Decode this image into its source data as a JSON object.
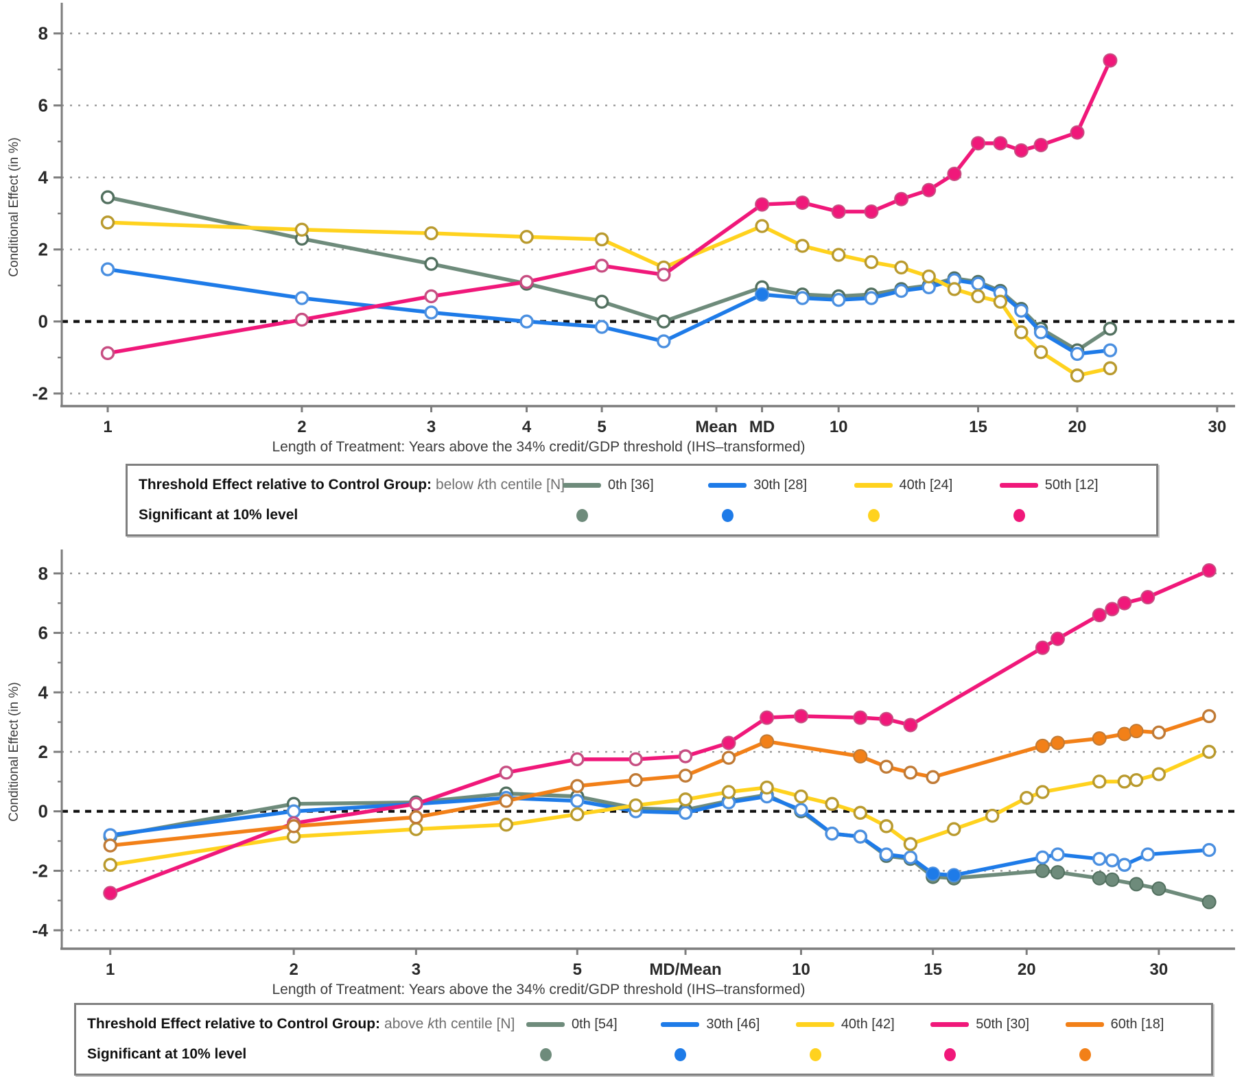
{
  "figure": {
    "background": "#ffffff"
  },
  "chart_data": [
    {
      "type": "line",
      "title": "",
      "xlabel": "Length of Treatment: Years above the 34% credit/GDP threshold (IHS–transformed)",
      "ylabel": "Conditional Effect (in %)",
      "x_scale": "asinh",
      "xlim": [
        0.82,
        31.6
      ],
      "ylim": [
        -2.35,
        8.7
      ],
      "grid": "dotted horizontal, zero line black dashed",
      "legend_position": "below chart in bordered box",
      "x_ticks": [
        {
          "v": 1,
          "label": "1"
        },
        {
          "v": 2,
          "label": "2"
        },
        {
          "v": 3,
          "label": "3"
        },
        {
          "v": 4,
          "label": "4"
        },
        {
          "v": 5,
          "label": "5"
        },
        {
          "v": 7,
          "label": "Mean",
          "bold": true
        },
        {
          "v": 8,
          "label": "MD",
          "bold": true
        },
        {
          "v": 10,
          "label": "10"
        },
        {
          "v": 15,
          "label": "15"
        },
        {
          "v": 20,
          "label": "20"
        },
        {
          "v": 30,
          "label": "30"
        }
      ],
      "y_ticks_major": [
        8,
        6,
        4,
        2,
        0,
        -2
      ],
      "y_ticks_minor": [
        7,
        5,
        3,
        1,
        -1
      ],
      "zero_line": 0,
      "x": [
        1,
        2,
        3,
        4,
        5,
        6,
        8,
        9,
        10,
        11,
        12,
        13,
        14,
        15,
        16,
        17,
        18,
        20,
        22
      ],
      "series": [
        {
          "name": "0th [36]",
          "color": "#6E8B7B",
          "ring": "#52705F",
          "y": [
            3.45,
            2.3,
            1.6,
            1.05,
            0.55,
            0.0,
            0.95,
            0.75,
            0.7,
            0.75,
            0.9,
            1.0,
            1.2,
            1.1,
            0.85,
            0.35,
            -0.2,
            -0.8,
            -0.2
          ],
          "filled": [
            0,
            0,
            0,
            0,
            0,
            0,
            0,
            0,
            0,
            0,
            0,
            0,
            0,
            0,
            0,
            0,
            0,
            0,
            0
          ]
        },
        {
          "name": "30th [28]",
          "color": "#1E7BE8",
          "ring": "#4A8FE0",
          "y": [
            1.45,
            0.65,
            0.25,
            0.0,
            -0.15,
            -0.55,
            0.75,
            0.65,
            0.6,
            0.65,
            0.85,
            0.95,
            1.15,
            1.05,
            0.8,
            0.3,
            -0.3,
            -0.9,
            -0.8
          ],
          "filled": [
            0,
            0,
            0,
            0,
            0,
            0,
            1,
            0,
            0,
            0,
            0,
            0,
            0,
            0,
            0,
            0,
            0,
            0,
            0
          ]
        },
        {
          "name": "40th [24]",
          "color": "#FFD21E",
          "ring": "#B99A2E",
          "y": [
            2.75,
            2.55,
            2.45,
            2.35,
            2.28,
            1.5,
            2.65,
            2.1,
            1.85,
            1.65,
            1.5,
            1.25,
            0.9,
            0.7,
            0.55,
            -0.3,
            -0.85,
            -1.5,
            -1.3
          ],
          "filled": [
            0,
            0,
            0,
            0,
            0,
            0,
            0,
            0,
            0,
            0,
            0,
            0,
            0,
            0,
            0,
            0,
            0,
            0,
            0
          ]
        },
        {
          "name": "50th [12]",
          "color": "#F0187A",
          "ring": "#C74E82",
          "y": [
            -0.88,
            0.05,
            0.7,
            1.1,
            1.55,
            1.3,
            3.25,
            3.3,
            3.05,
            3.05,
            3.4,
            3.65,
            4.1,
            4.95,
            4.95,
            4.75,
            4.9,
            5.25,
            7.25
          ],
          "filled": [
            0,
            0,
            0,
            0,
            0,
            0,
            1,
            1,
            1,
            1,
            1,
            1,
            1,
            1,
            1,
            1,
            1,
            1,
            1
          ]
        }
      ],
      "legend": {
        "title_bold": "Threshold Effect relative to Control Group:",
        "q_pre": "below ",
        "q_k": "k",
        "q_post": "th centile [N]",
        "sig_label": "Significant at 10% level"
      }
    },
    {
      "type": "line",
      "title": "",
      "xlabel": "Length of Treatment: Years above the 34% credit/GDP threshold (IHS–transformed)",
      "ylabel": "Conditional Effect (in %)",
      "x_scale": "asinh",
      "xlim": [
        0.8,
        37.9
      ],
      "ylim": [
        -4.62,
        8.62
      ],
      "grid": "dotted horizontal, zero line black dashed",
      "legend_position": "below chart in bordered box",
      "x_ticks": [
        {
          "v": 1,
          "label": "1"
        },
        {
          "v": 2,
          "label": "2"
        },
        {
          "v": 3,
          "label": "3"
        },
        {
          "v": 5,
          "label": "5"
        },
        {
          "v": 7,
          "label": "MD/Mean",
          "bold": true
        },
        {
          "v": 10,
          "label": "10"
        },
        {
          "v": 15,
          "label": "15"
        },
        {
          "v": 20,
          "label": "20"
        },
        {
          "v": 30,
          "label": "30"
        }
      ],
      "y_ticks_major": [
        8,
        6,
        4,
        2,
        0,
        -2,
        -4
      ],
      "y_ticks_minor": [
        7,
        5,
        3,
        1,
        -1,
        -3
      ],
      "zero_line": 0,
      "series": [
        {
          "name": "0th [54]",
          "color": "#6E8B7B",
          "ring": "#52705F",
          "x": [
            1,
            2,
            3,
            4,
            5,
            6,
            7,
            8,
            9,
            10,
            11,
            12,
            13,
            14,
            15,
            16,
            21,
            22,
            25,
            26,
            28,
            30,
            35
          ],
          "y": [
            -0.85,
            0.25,
            0.3,
            0.6,
            0.5,
            0.1,
            0.05,
            0.35,
            0.55,
            0.0,
            -0.75,
            -0.85,
            -1.5,
            -1.6,
            -2.2,
            -2.25,
            -2.0,
            -2.05,
            -2.25,
            -2.3,
            -2.45,
            -2.6,
            -3.05
          ],
          "filled": [
            0,
            0,
            0,
            0,
            0,
            0,
            0,
            0,
            0,
            0,
            0,
            0,
            0,
            0,
            1,
            1,
            1,
            1,
            1,
            1,
            1,
            1,
            1
          ]
        },
        {
          "name": "30th [46]",
          "color": "#1E7BE8",
          "ring": "#4A8FE0",
          "x": [
            1,
            2,
            3,
            4,
            5,
            6,
            7,
            8,
            9,
            10,
            11,
            12,
            13,
            14,
            15,
            16,
            21,
            22,
            25,
            26,
            27,
            29,
            35
          ],
          "y": [
            -0.8,
            0.0,
            0.25,
            0.45,
            0.35,
            0.0,
            -0.05,
            0.3,
            0.5,
            0.05,
            -0.75,
            -0.85,
            -1.45,
            -1.55,
            -2.1,
            -2.15,
            -1.55,
            -1.45,
            -1.6,
            -1.65,
            -1.8,
            -1.45,
            -1.3
          ],
          "filled": [
            0,
            0,
            0,
            0,
            0,
            0,
            0,
            0,
            0,
            0,
            0,
            0,
            0,
            0,
            1,
            1,
            0,
            0,
            0,
            0,
            0,
            0,
            0
          ]
        },
        {
          "name": "40th [42]",
          "color": "#FFD21E",
          "ring": "#B99A2E",
          "x": [
            1,
            2,
            3,
            4,
            5,
            6,
            7,
            8,
            9,
            10,
            11,
            12,
            13,
            14,
            16,
            18,
            20,
            21,
            25,
            27,
            28,
            30,
            35
          ],
          "y": [
            -1.8,
            -0.85,
            -0.6,
            -0.45,
            -0.1,
            0.2,
            0.4,
            0.65,
            0.8,
            0.5,
            0.25,
            -0.05,
            -0.5,
            -1.1,
            -0.6,
            -0.15,
            0.45,
            0.65,
            1.0,
            1.0,
            1.05,
            1.25,
            2.0
          ],
          "filled": [
            0,
            0,
            0,
            0,
            0,
            0,
            0,
            0,
            0,
            0,
            0,
            0,
            0,
            0,
            0,
            0,
            0,
            0,
            0,
            0,
            0,
            0,
            0
          ]
        },
        {
          "name": "50th [30]",
          "color": "#F0187A",
          "ring": "#C74E82",
          "x": [
            1,
            2,
            3,
            4,
            5,
            6,
            7,
            8,
            9,
            10,
            12,
            13,
            14,
            21,
            22,
            25,
            26,
            27,
            29,
            35
          ],
          "y": [
            -2.75,
            -0.4,
            0.25,
            1.3,
            1.75,
            1.75,
            1.85,
            2.3,
            3.15,
            3.2,
            3.15,
            3.1,
            2.9,
            5.5,
            5.8,
            6.6,
            6.8,
            7.0,
            7.2,
            8.1
          ],
          "filled": [
            1,
            0,
            0,
            0,
            0,
            0,
            0,
            1,
            1,
            1,
            1,
            1,
            1,
            1,
            1,
            1,
            1,
            1,
            1,
            1
          ]
        },
        {
          "name": "60th [18]",
          "color": "#F28018",
          "ring": "#C07A35",
          "x": [
            1,
            2,
            3,
            4,
            5,
            6,
            7,
            8,
            9,
            12,
            13,
            14,
            15,
            21,
            22,
            25,
            27,
            28,
            30,
            35
          ],
          "y": [
            -1.15,
            -0.5,
            -0.2,
            0.35,
            0.85,
            1.05,
            1.2,
            1.8,
            2.35,
            1.85,
            1.5,
            1.3,
            1.15,
            2.2,
            2.3,
            2.45,
            2.6,
            2.7,
            2.65,
            3.2
          ],
          "filled": [
            0,
            0,
            0,
            0,
            0,
            0,
            0,
            0,
            1,
            1,
            0,
            0,
            0,
            1,
            1,
            1,
            1,
            1,
            0,
            0
          ]
        }
      ],
      "legend": {
        "title_bold": "Threshold Effect relative to Control Group:",
        "q_pre": "above ",
        "q_k": "k",
        "q_post": "th centile [N]",
        "sig_label": "Significant at 10% level"
      }
    }
  ]
}
